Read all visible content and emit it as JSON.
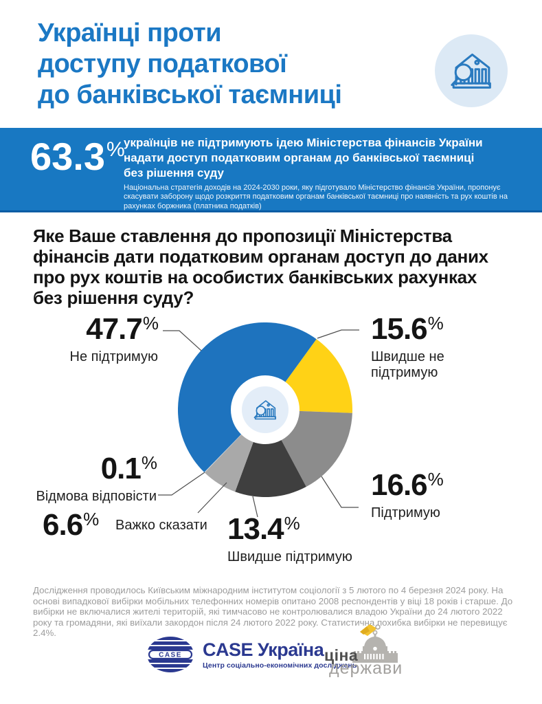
{
  "percent_sign": "%",
  "header": {
    "title_lines": [
      "Українці проти",
      "доступу податкової",
      "до банківської таємниці"
    ],
    "icon": "bank-with-magnifier-icon"
  },
  "banner": {
    "stat_value": "63.3",
    "text_lines": [
      "українців не підтримують ідею Міністерства фінансів України",
      "надати доступ податковим органам до банківської таємниці",
      "без рішення суду"
    ],
    "note": "Національна стратегія доходів на 2024-2030 роки, яку підготувало Міністерство фінансів України, пропонує скасувати заборону щодо розкриття податковим органам банківської таємниці про наявність та рух коштів на рахунках боржника (платника податків)"
  },
  "question_lines": [
    "Яке Ваше ставлення до пропозиції Міністерства",
    "фінансів дати податковим органам доступ до даних",
    "про рух коштів на особистих банківських рахунках",
    "без рішення суду?"
  ],
  "chart_data": {
    "type": "pie",
    "donut": true,
    "title": "Яке Ваше ставлення до пропозиції Міністерства фінансів дати податковим органам доступ до даних про рух коштів на особистих банківських рахунках без рішення суду?",
    "start_angle_deg": 36,
    "direction": "clockwise",
    "slices": [
      {
        "label": "Швидше не підтримую",
        "value": 15.6,
        "color": "#FFD216"
      },
      {
        "label": "Підтримую",
        "value": 16.6,
        "color": "#8C8C8C"
      },
      {
        "label": "Швидше підтримую",
        "value": 13.4,
        "color": "#3F3F3F"
      },
      {
        "label": "Важко сказати",
        "value": 6.6,
        "color": "#A9A9A9"
      },
      {
        "label": "Відмова відповісти",
        "value": 0.1,
        "color": "#D9D9D9"
      },
      {
        "label": "Не підтримую",
        "value": 47.7,
        "color": "#1E73BE"
      }
    ]
  },
  "footer": {
    "note": "Дослідження проводилось Київським міжнародним інститутом соціології з 5 лютого по 4 березня 2024 року.  На основі випадкової вибірки мобільних телефонних номерів опитано 2008 респондентів у віці 18 років і старше.  До вибірки не включалися жителі територій, які тимчасово не контролювалися владою України до 24 лютого 2022 року та громадяни, які виїхали закордон після 24 лютого 2022 року.  Статистична похибка вибірки не перевищує 2.4%."
  },
  "logos": {
    "case": {
      "emblem_text": "CASE",
      "name": "CASE Україна",
      "subtitle": "Центр соціально-економічних досліджень"
    },
    "tsina": {
      "word1": "ціна",
      "word2": "держави"
    }
  },
  "colors": {
    "accent_blue": "#1878C2",
    "title_blue": "#1B78C4",
    "icon_blue": "#2A7ABF",
    "navy": "#2B3990"
  }
}
